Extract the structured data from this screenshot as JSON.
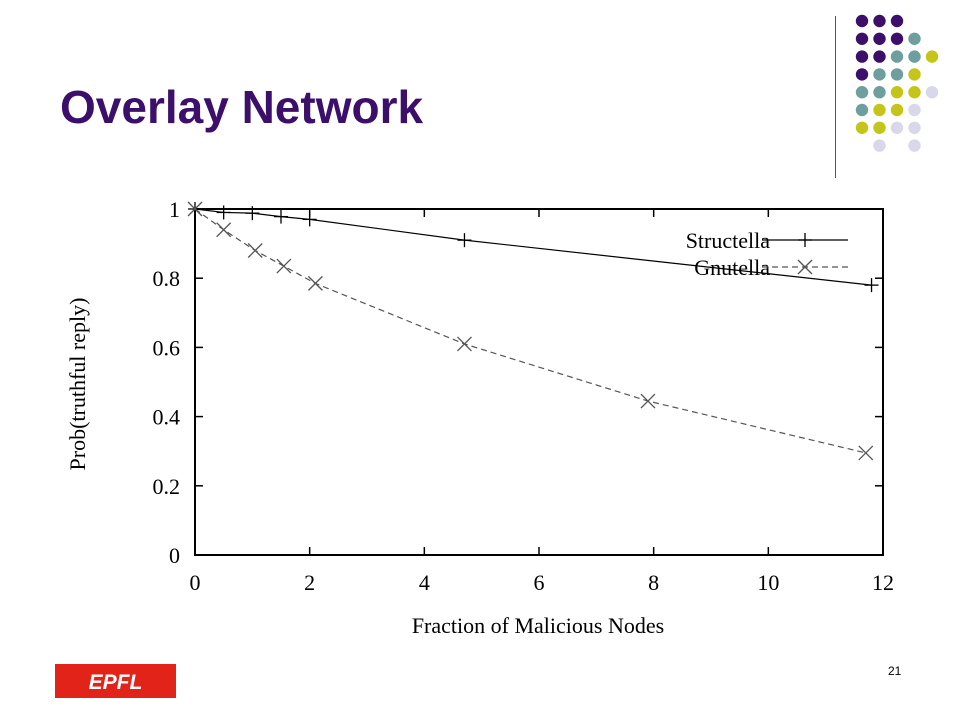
{
  "slide": {
    "title": "Overlay Network",
    "page_number": "21",
    "logo_text": "EPFL",
    "title_color": "#3c0f6b",
    "accent_colors": [
      "#3c0f6b",
      "#6e9e9e",
      "#c4c41a",
      "#d8d8ea"
    ]
  },
  "chart_data": {
    "type": "line",
    "title": "",
    "xlabel": "Fraction of Malicious Nodes",
    "ylabel": "Prob(truthful reply)",
    "xlim": [
      0,
      12
    ],
    "ylim": [
      0,
      1
    ],
    "xticks": [
      "0",
      "2",
      "4",
      "6",
      "8",
      "10",
      "12"
    ],
    "yticks": [
      "0",
      "0.2",
      "0.4",
      "0.6",
      "0.8",
      "1"
    ],
    "grid": false,
    "legend_position": "top-right",
    "series": [
      {
        "name": "Structella",
        "marker": "plus",
        "line_style": "solid",
        "color": "#000000",
        "x": [
          0,
          0.5,
          1,
          1.5,
          2,
          4.7,
          11.8
        ],
        "y": [
          1,
          0.99,
          0.988,
          0.978,
          0.97,
          0.91,
          0.78
        ]
      },
      {
        "name": "Gnutella",
        "marker": "cross",
        "line_style": "dashed",
        "color": "#555555",
        "x": [
          0,
          0.5,
          1.05,
          1.55,
          2.1,
          4.7,
          7.9,
          11.7
        ],
        "y": [
          1,
          0.94,
          0.88,
          0.835,
          0.785,
          0.61,
          0.445,
          0.295
        ]
      }
    ]
  }
}
